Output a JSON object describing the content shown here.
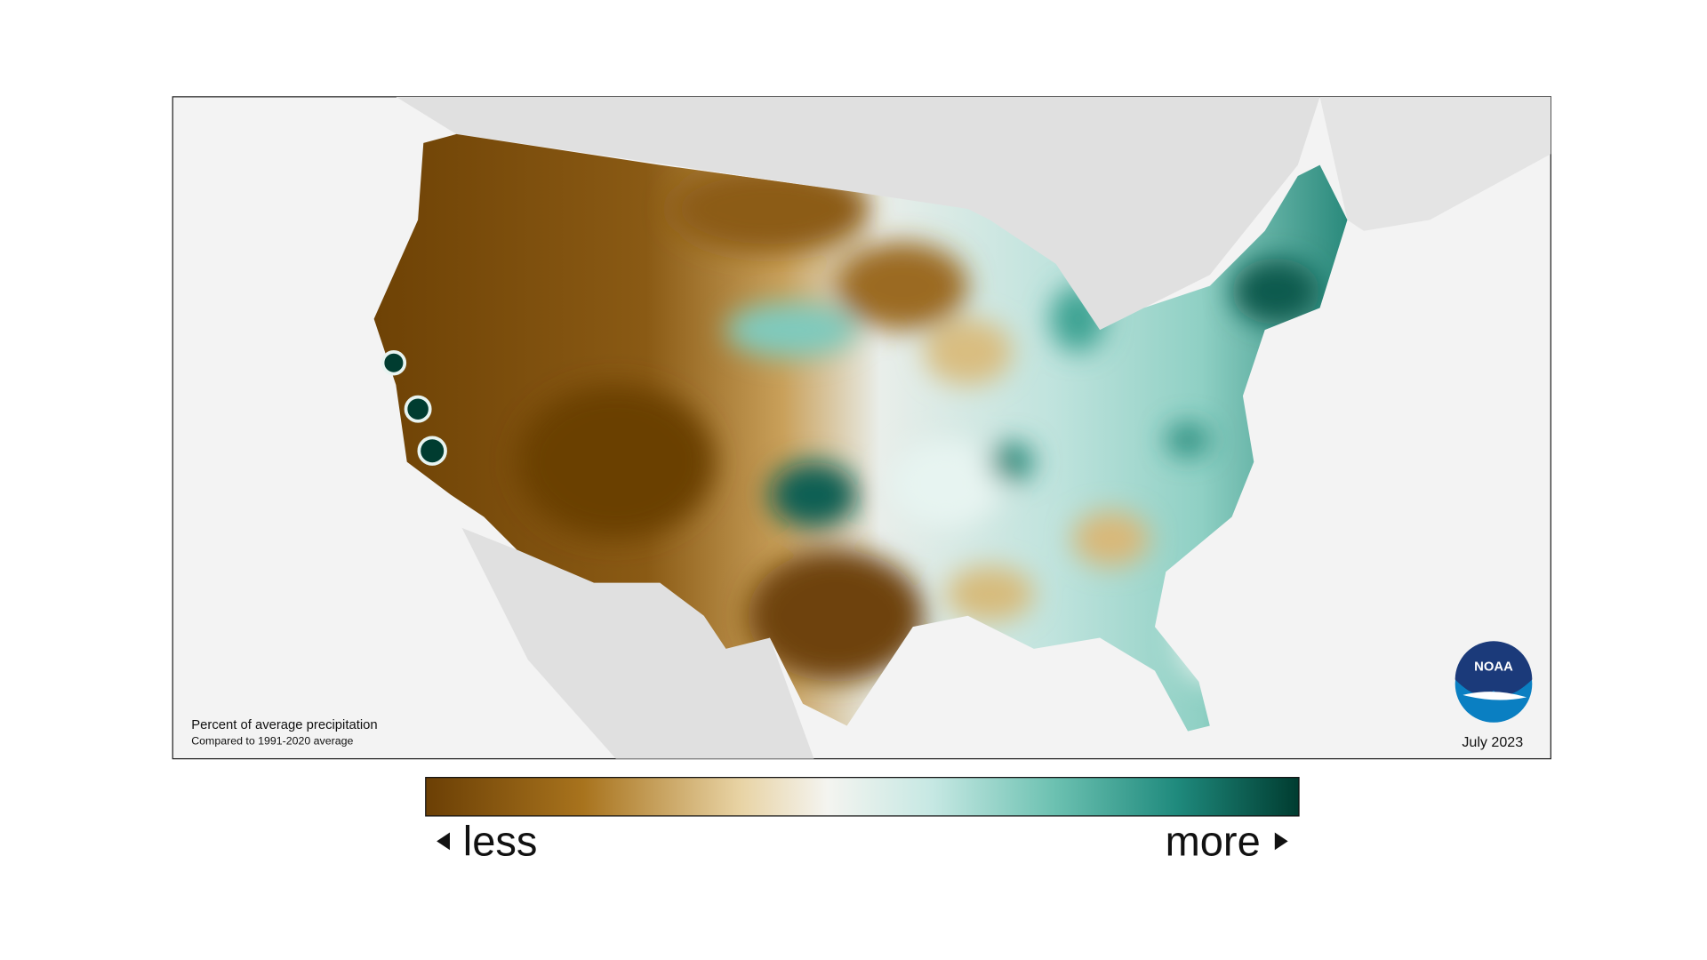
{
  "map": {
    "caption": {
      "title": "Percent of average precipitation",
      "subtitle": "Compared to 1991-2020 average"
    },
    "date": "July 2023",
    "logo": "NOAA",
    "legend": {
      "low": "less",
      "high": "more"
    }
  }
}
